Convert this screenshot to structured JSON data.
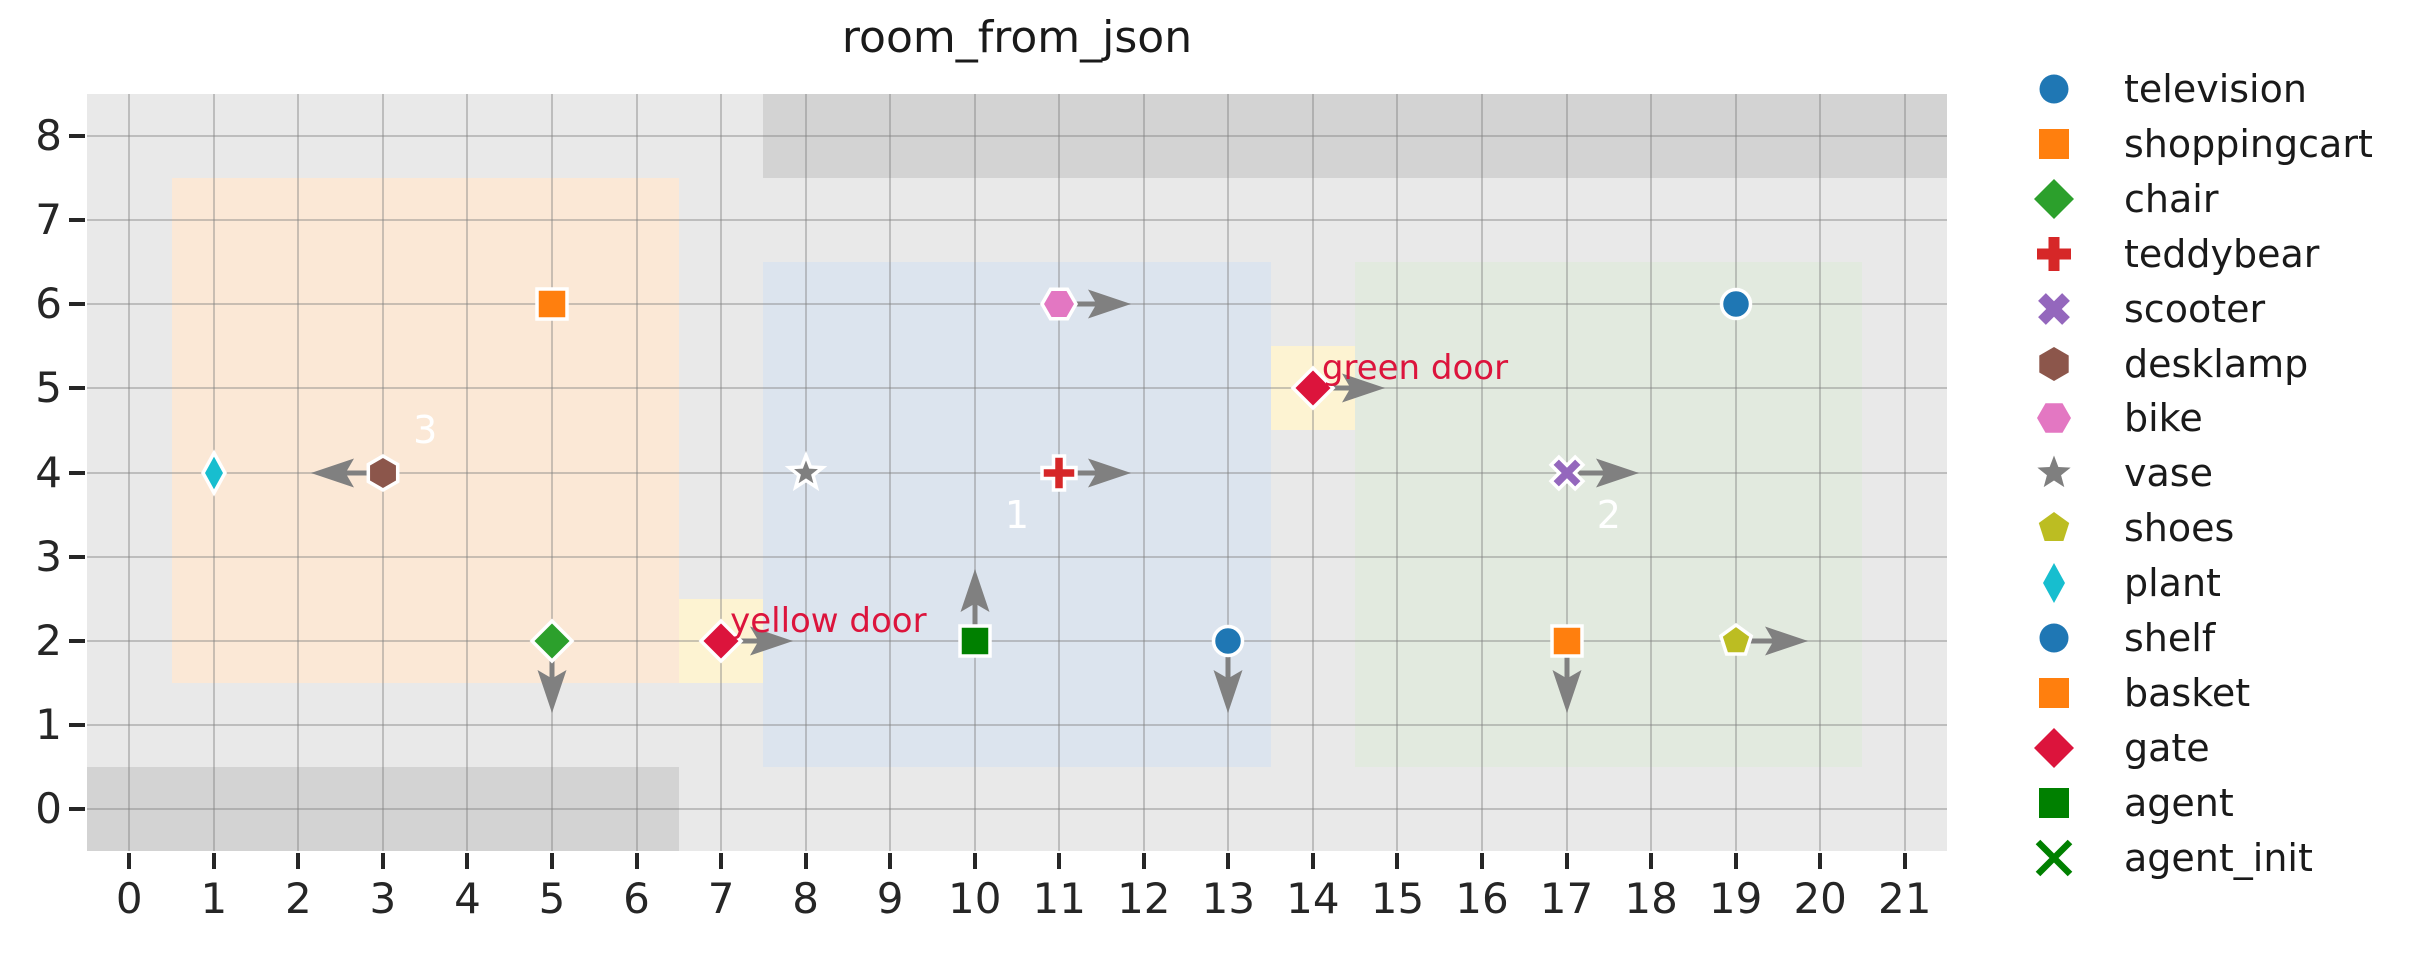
{
  "chart_data": {
    "type": "scatter",
    "title": "room_from_json",
    "xlabel": "",
    "ylabel": "",
    "xlim": [
      -0.5,
      21.5
    ],
    "ylim": [
      -0.5,
      8.5
    ],
    "x_ticks": [
      0,
      1,
      2,
      3,
      4,
      5,
      6,
      7,
      8,
      9,
      10,
      11,
      12,
      13,
      14,
      15,
      16,
      17,
      18,
      19,
      20,
      21
    ],
    "y_ticks": [
      0,
      1,
      2,
      3,
      4,
      5,
      6,
      7,
      8
    ],
    "grid": true,
    "legend_position": "right-outside",
    "colors": {
      "figure_bg": "#ffffff",
      "plot_bg": "#e9e9e9",
      "wall": "#d3d3d3",
      "arrow": "#808080",
      "room_label_text": "#ffffff",
      "door_label_text": "#dc143c",
      "tick_text": "#262626",
      "title_text": "#1a1a1a"
    },
    "walls": [
      {
        "name": "top-wall",
        "x": [
          7.5,
          21.5
        ],
        "y": [
          7.5,
          8.5
        ]
      },
      {
        "name": "bottom-wall",
        "x": [
          -0.5,
          6.5
        ],
        "y": [
          -0.5,
          0.5
        ]
      }
    ],
    "rooms": [
      {
        "label": "3",
        "x": [
          0.5,
          6.5
        ],
        "y": [
          1.5,
          7.5
        ],
        "color": "#fbe8d6",
        "label_at": [
          3.5,
          4.5
        ]
      },
      {
        "label": "1",
        "x": [
          7.5,
          13.5
        ],
        "y": [
          0.5,
          6.5
        ],
        "color": "#dce4ee",
        "label_at": [
          10.5,
          3.5
        ]
      },
      {
        "label": "2",
        "x": [
          14.5,
          20.5
        ],
        "y": [
          0.5,
          6.5
        ],
        "color": "#e2eadf",
        "label_at": [
          17.5,
          3.5
        ]
      }
    ],
    "doors": [
      {
        "label": "yellow door",
        "x": [
          6.5,
          7.5
        ],
        "y": [
          1.5,
          2.5
        ],
        "at": [
          7,
          2
        ],
        "color": "#fdf3d2"
      },
      {
        "label": "green door",
        "x": [
          13.5,
          14.5
        ],
        "y": [
          4.5,
          5.5
        ],
        "at": [
          14,
          5
        ],
        "color": "#fdf3d2"
      }
    ],
    "objects": [
      {
        "name": "plant",
        "x": 1,
        "y": 4,
        "marker": "thin-diamond",
        "color": "#17becf",
        "arrow": null
      },
      {
        "name": "desklamp",
        "x": 3,
        "y": 4,
        "marker": "hexagon-pointy",
        "color": "#8c564b",
        "arrow": "left"
      },
      {
        "name": "shoppingcart",
        "x": 5,
        "y": 6,
        "marker": "square",
        "color": "#ff7f0e",
        "arrow": null
      },
      {
        "name": "chair",
        "x": 5,
        "y": 2,
        "marker": "diamond",
        "color": "#2ca02c",
        "arrow": "down"
      },
      {
        "name": "gate-yellow-door",
        "x": 7,
        "y": 2,
        "marker": "diamond",
        "color": "#dc143c",
        "arrow": "right"
      },
      {
        "name": "vase",
        "x": 8,
        "y": 4,
        "marker": "star",
        "color": "#7f7f7f",
        "arrow": null
      },
      {
        "name": "agent",
        "x": 10,
        "y": 2,
        "marker": "square",
        "color": "#008000",
        "arrow": "up"
      },
      {
        "name": "teddybear",
        "x": 11,
        "y": 4,
        "marker": "plus",
        "color": "#d62728",
        "arrow": "right"
      },
      {
        "name": "bike",
        "x": 11,
        "y": 6,
        "marker": "hexagon-flat",
        "color": "#e377c2",
        "arrow": "right"
      },
      {
        "name": "television",
        "x": 13,
        "y": 2,
        "marker": "circle",
        "color": "#1f77b4",
        "arrow": "down"
      },
      {
        "name": "gate-green-door",
        "x": 14,
        "y": 5,
        "marker": "diamond",
        "color": "#dc143c",
        "arrow": "right"
      },
      {
        "name": "scooter",
        "x": 17,
        "y": 4,
        "marker": "x",
        "color": "#9467bd",
        "arrow": "right"
      },
      {
        "name": "basket",
        "x": 17,
        "y": 2,
        "marker": "square",
        "color": "#ff7f0e",
        "arrow": "down"
      },
      {
        "name": "shoes",
        "x": 19,
        "y": 2,
        "marker": "pentagon",
        "color": "#bcbd22",
        "arrow": "right"
      },
      {
        "name": "shelf",
        "x": 19,
        "y": 6,
        "marker": "circle",
        "color": "#1f77b4",
        "arrow": null
      }
    ],
    "legend": [
      {
        "label": "television",
        "marker": "circle",
        "color": "#1f77b4"
      },
      {
        "label": "shoppingcart",
        "marker": "square",
        "color": "#ff7f0e"
      },
      {
        "label": "chair",
        "marker": "diamond",
        "color": "#2ca02c"
      },
      {
        "label": "teddybear",
        "marker": "plus",
        "color": "#d62728"
      },
      {
        "label": "scooter",
        "marker": "x",
        "color": "#9467bd"
      },
      {
        "label": "desklamp",
        "marker": "hexagon-pointy",
        "color": "#8c564b"
      },
      {
        "label": "bike",
        "marker": "hexagon-flat",
        "color": "#e377c2"
      },
      {
        "label": "vase",
        "marker": "star",
        "color": "#7f7f7f"
      },
      {
        "label": "shoes",
        "marker": "pentagon",
        "color": "#bcbd22"
      },
      {
        "label": "plant",
        "marker": "thin-diamond",
        "color": "#17becf"
      },
      {
        "label": "shelf",
        "marker": "circle",
        "color": "#1f77b4"
      },
      {
        "label": "basket",
        "marker": "square",
        "color": "#ff7f0e"
      },
      {
        "label": "gate",
        "marker": "diamond",
        "color": "#dc143c"
      },
      {
        "label": "agent",
        "marker": "square",
        "color": "#008000"
      },
      {
        "label": "agent_init",
        "marker": "x-thin",
        "color": "#008000"
      }
    ]
  }
}
